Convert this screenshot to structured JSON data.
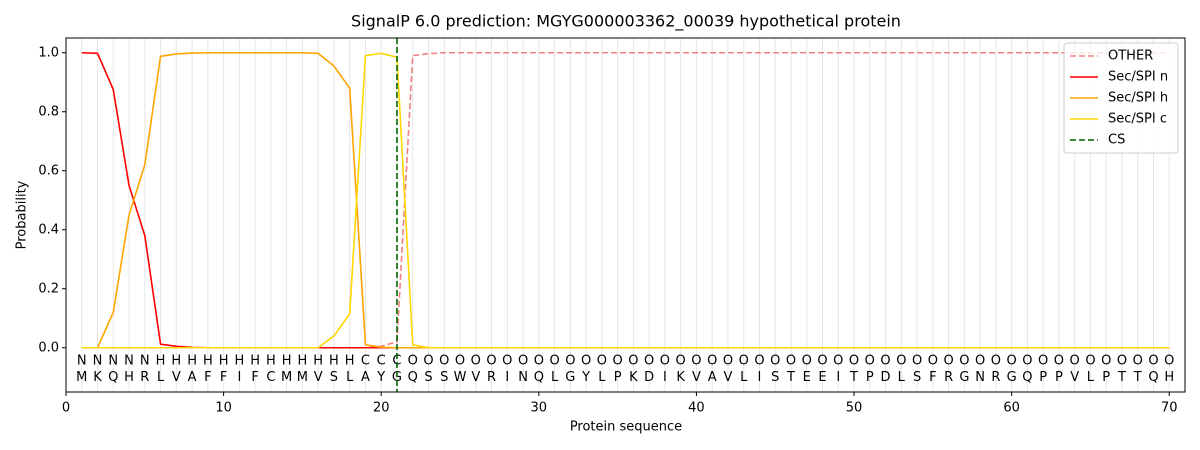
{
  "chart_data": {
    "type": "line",
    "title": "SignalP 6.0 prediction: MGYG000003362_00039 hypothetical protein",
    "xlabel": "Protein sequence",
    "ylabel": "Probability",
    "xlim": [
      0,
      71
    ],
    "ylim": [
      -0.15,
      1.05
    ],
    "xticks": [
      0,
      10,
      20,
      30,
      40,
      50,
      60,
      70
    ],
    "yticks": [
      {
        "value": 0,
        "label": "0.0"
      },
      {
        "value": 0.2,
        "label": "0.2"
      },
      {
        "value": 0.4,
        "label": "0.4"
      },
      {
        "value": 0.6,
        "label": "0.6"
      },
      {
        "value": 0.8,
        "label": "0.8"
      },
      {
        "value": 1,
        "label": "1.0"
      }
    ],
    "x": [
      1,
      2,
      3,
      4,
      5,
      6,
      7,
      8,
      9,
      10,
      11,
      12,
      13,
      14,
      15,
      16,
      17,
      18,
      19,
      20,
      21,
      22,
      23,
      24,
      25,
      26,
      27,
      28,
      29,
      30,
      31,
      32,
      33,
      34,
      35,
      36,
      37,
      38,
      39,
      40,
      41,
      42,
      43,
      44,
      45,
      46,
      47,
      48,
      49,
      50,
      51,
      52,
      53,
      54,
      55,
      56,
      57,
      58,
      59,
      60,
      61,
      62,
      63,
      64,
      65,
      66,
      67,
      68,
      69,
      70
    ],
    "series": [
      {
        "name": "OTHER",
        "color": "lightcoral",
        "dashed": true,
        "values": [
          0,
          0,
          0,
          0,
          0,
          0,
          0,
          0,
          0,
          0,
          0,
          0,
          0,
          0,
          0,
          0,
          0,
          0,
          0,
          0.005,
          0.02,
          0.99,
          0.997,
          1,
          1,
          1,
          1,
          1,
          1,
          1,
          1,
          1,
          1,
          1,
          1,
          1,
          1,
          1,
          1,
          1,
          1,
          1,
          1,
          1,
          1,
          1,
          1,
          1,
          1,
          1,
          1,
          1,
          1,
          1,
          1,
          1,
          1,
          1,
          1,
          1,
          1,
          1,
          1,
          1,
          1,
          1,
          1,
          1,
          1,
          1
        ]
      },
      {
        "name": "Sec/SPI n",
        "color": "red",
        "dashed": false,
        "values": [
          1,
          0.998,
          0.875,
          0.55,
          0.38,
          0.012,
          0.005,
          0.001,
          0,
          0,
          0,
          0,
          0,
          0,
          0,
          0,
          0,
          0,
          0,
          0,
          0,
          0,
          0,
          0,
          0,
          0,
          0,
          0,
          0,
          0,
          0,
          0,
          0,
          0,
          0,
          0,
          0,
          0,
          0,
          0,
          0,
          0,
          0,
          0,
          0,
          0,
          0,
          0,
          0,
          0,
          0,
          0,
          0,
          0,
          0,
          0,
          0,
          0,
          0,
          0,
          0,
          0,
          0,
          0,
          0,
          0,
          0,
          0,
          0,
          0
        ]
      },
      {
        "name": "Sec/SPI h",
        "color": "orange",
        "dashed": false,
        "values": [
          0,
          0,
          0.12,
          0.45,
          0.62,
          0.988,
          0.996,
          0.999,
          1,
          1,
          1,
          1,
          1,
          1,
          1,
          0.998,
          0.955,
          0.88,
          0.01,
          0.002,
          0,
          0,
          0,
          0,
          0,
          0,
          0,
          0,
          0,
          0,
          0,
          0,
          0,
          0,
          0,
          0,
          0,
          0,
          0,
          0,
          0,
          0,
          0,
          0,
          0,
          0,
          0,
          0,
          0,
          0,
          0,
          0,
          0,
          0,
          0,
          0,
          0,
          0,
          0,
          0,
          0,
          0,
          0,
          0,
          0,
          0,
          0,
          0,
          0,
          0
        ]
      },
      {
        "name": "Sec/SPI c",
        "color": "gold",
        "dashed": false,
        "values": [
          0,
          0,
          0,
          0,
          0,
          0,
          0,
          0,
          0,
          0,
          0,
          0,
          0,
          0,
          0,
          0,
          0.04,
          0.115,
          0.99,
          0.998,
          0.985,
          0.01,
          0,
          0,
          0,
          0,
          0,
          0,
          0,
          0,
          0,
          0,
          0,
          0,
          0,
          0,
          0,
          0,
          0,
          0,
          0,
          0,
          0,
          0,
          0,
          0,
          0,
          0,
          0,
          0,
          0,
          0,
          0,
          0,
          0,
          0,
          0,
          0,
          0,
          0,
          0,
          0,
          0,
          0,
          0,
          0,
          0,
          0,
          0,
          0
        ]
      }
    ],
    "cs": {
      "name": "CS",
      "color": "darkgreen",
      "x": 21
    },
    "residues": [
      "M",
      "K",
      "Q",
      "H",
      "R",
      "L",
      "V",
      "A",
      "F",
      "F",
      "I",
      "F",
      "C",
      "M",
      "M",
      "V",
      "S",
      "L",
      "A",
      "Y",
      "G",
      "Q",
      "S",
      "S",
      "W",
      "V",
      "R",
      "I",
      "N",
      "Q",
      "L",
      "G",
      "Y",
      "L",
      "P",
      "K",
      "D",
      "I",
      "K",
      "V",
      "A",
      "V",
      "L",
      "I",
      "S",
      "T",
      "E",
      "E",
      "I",
      "T",
      "P",
      "D",
      "L",
      "S",
      "F",
      "R",
      "G",
      "N",
      "R",
      "G",
      "Q",
      "P",
      "P",
      "V",
      "L",
      "P",
      "T",
      "T",
      "Q",
      "H"
    ],
    "regions": [
      "N",
      "N",
      "N",
      "N",
      "N",
      "H",
      "H",
      "H",
      "H",
      "H",
      "H",
      "H",
      "H",
      "H",
      "H",
      "H",
      "H",
      "H",
      "C",
      "C",
      "C",
      "O",
      "O",
      "O",
      "O",
      "O",
      "O",
      "O",
      "O",
      "O",
      "O",
      "O",
      "O",
      "O",
      "O",
      "O",
      "O",
      "O",
      "O",
      "O",
      "O",
      "O",
      "O",
      "O",
      "O",
      "O",
      "O",
      "O",
      "O",
      "O",
      "O",
      "O",
      "O",
      "O",
      "O",
      "O",
      "O",
      "O",
      "O",
      "O",
      "O",
      "O",
      "O",
      "O",
      "O",
      "O",
      "O",
      "O",
      "O",
      "O"
    ],
    "region_colors": {
      "N": "red",
      "H": "orange",
      "C": "gold",
      "O": "gray"
    },
    "grid": true,
    "legend": "upper right"
  }
}
